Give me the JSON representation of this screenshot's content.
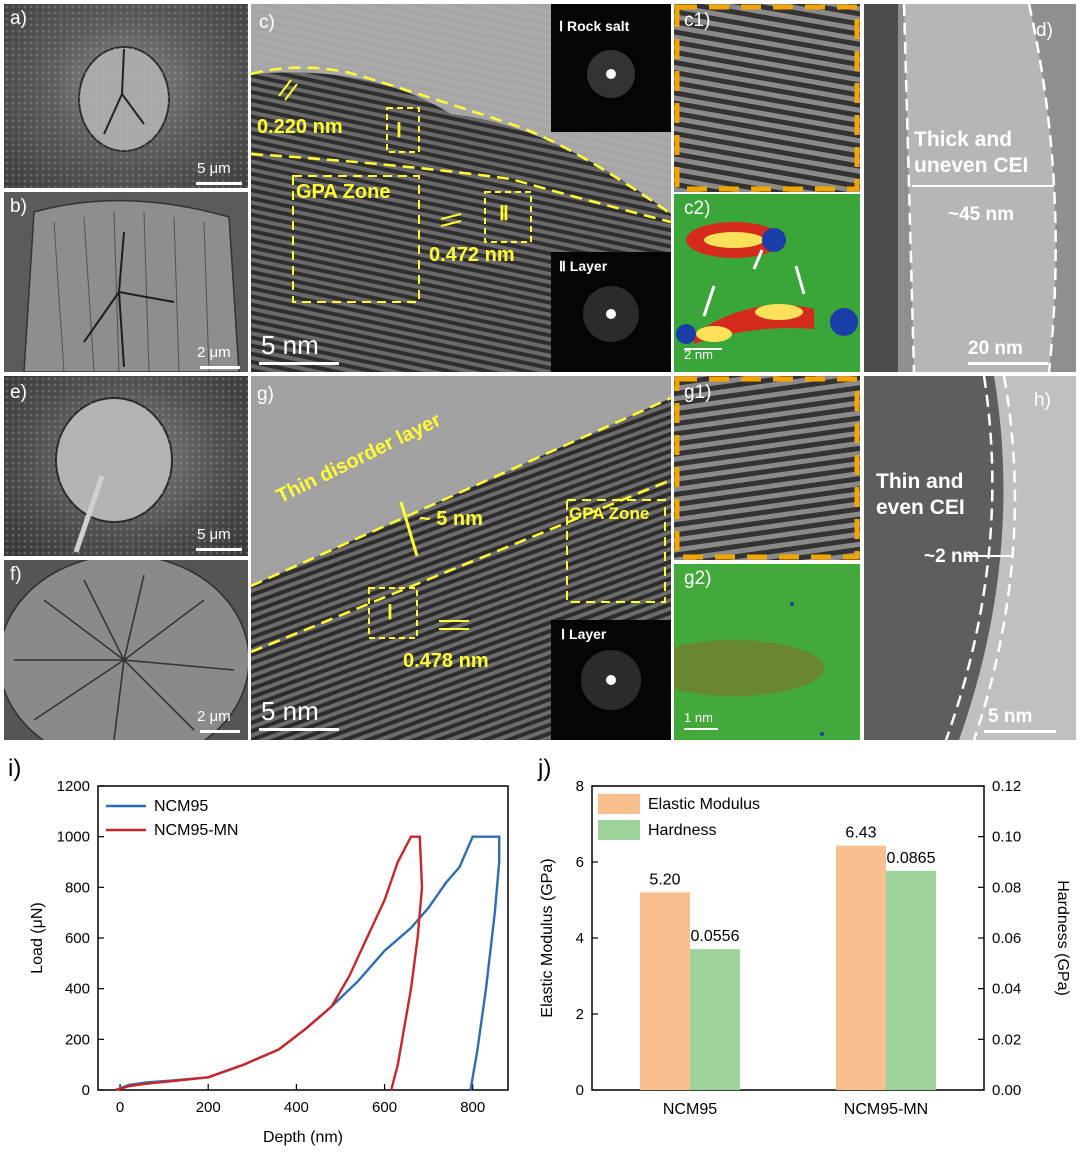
{
  "panels": {
    "a": {
      "label": "a)",
      "scale": "5 μm"
    },
    "b": {
      "label": "b)",
      "scale": "2 μm"
    },
    "c": {
      "label": "c)",
      "scale": "5 nm",
      "d1": "0.220 nm",
      "d2": "0.472 nm",
      "zone": "GPA Zone",
      "roi1": "Ⅰ",
      "roi2": "Ⅱ",
      "fft1": "Ⅰ Rock salt",
      "fft2": "Ⅱ Layer"
    },
    "c1": {
      "label": "c1)"
    },
    "c2": {
      "label": "c2)",
      "scale": "2 nm"
    },
    "d": {
      "label": "d)",
      "scale": "20 nm",
      "note1": "Thick and",
      "note2": "uneven CEI",
      "thick": "~45 nm"
    },
    "e": {
      "label": "e)",
      "scale": "5 μm"
    },
    "f": {
      "label": "f)",
      "scale": "2 μm"
    },
    "g": {
      "label": "g)",
      "scale": "5 nm",
      "layer": "Thin disorder layer",
      "thick": "~ 5 nm",
      "zone": "GPA Zone",
      "roi1": "Ⅰ",
      "d1": "0.478 nm",
      "fft1": "Ⅰ Layer"
    },
    "g1": {
      "label": "g1)"
    },
    "g2": {
      "label": "g2)",
      "scale": "1 nm"
    },
    "h": {
      "label": "h)",
      "scale": "5 nm",
      "note1": "Thin and",
      "note2": "even CEI",
      "thick": "~2 nm"
    }
  },
  "chart_i": {
    "label": "i)"
  },
  "chart_j": {
    "label": "j)"
  },
  "chart_data": [
    {
      "type": "line",
      "xlabel": "Depth (nm)",
      "ylabel": "Load (μN)",
      "xlim": [
        -50,
        880
      ],
      "ylim": [
        0,
        1200
      ],
      "xticks": [
        0,
        200,
        400,
        600,
        800
      ],
      "yticks": [
        0,
        200,
        400,
        600,
        800,
        1000,
        1200
      ],
      "legend_position": "top-left",
      "series": [
        {
          "name": "NCM95",
          "color": "#2f6db0",
          "x": [
            -10,
            20,
            60,
            120,
            200,
            280,
            360,
            420,
            480,
            540,
            600,
            660,
            700,
            740,
            770,
            800,
            840,
            860,
            860,
            850,
            830,
            810,
            795
          ],
          "y": [
            0,
            20,
            30,
            38,
            50,
            100,
            160,
            240,
            330,
            430,
            550,
            640,
            720,
            820,
            880,
            1000,
            1000,
            1000,
            900,
            700,
            400,
            150,
            0
          ]
        },
        {
          "name": "NCM95-MN",
          "color": "#c8262b",
          "x": [
            -10,
            20,
            60,
            120,
            200,
            280,
            360,
            420,
            480,
            520,
            560,
            600,
            630,
            660,
            680,
            685,
            675,
            660,
            645,
            630,
            615
          ],
          "y": [
            0,
            15,
            25,
            35,
            50,
            100,
            160,
            240,
            330,
            450,
            600,
            750,
            900,
            1000,
            1000,
            800,
            600,
            400,
            250,
            100,
            0
          ]
        }
      ]
    },
    {
      "type": "bar",
      "categories": [
        "NCM95",
        "NCM95-MN"
      ],
      "xlabel": "",
      "ylabel": "Elastic Modulus (GPa)",
      "y2label": "Hardness (GPa)",
      "ylim": [
        0,
        8
      ],
      "y2lim": [
        0,
        0.12
      ],
      "yticks": [
        0,
        2,
        4,
        6,
        8
      ],
      "y2ticks": [
        "0.00",
        "0.02",
        "0.04",
        "0.06",
        "0.08",
        "0.10",
        "0.12"
      ],
      "legend_position": "top-left",
      "series": [
        {
          "name": "Elastic Modulus",
          "color": "#f9c08f",
          "axis": "left",
          "values": [
            5.2,
            6.43
          ],
          "labels": [
            "5.20",
            "6.43"
          ]
        },
        {
          "name": "Hardness",
          "color": "#9bd39b",
          "axis": "right",
          "values": [
            0.0556,
            0.0865
          ],
          "labels": [
            "0.0556",
            "0.0865"
          ]
        }
      ]
    }
  ]
}
